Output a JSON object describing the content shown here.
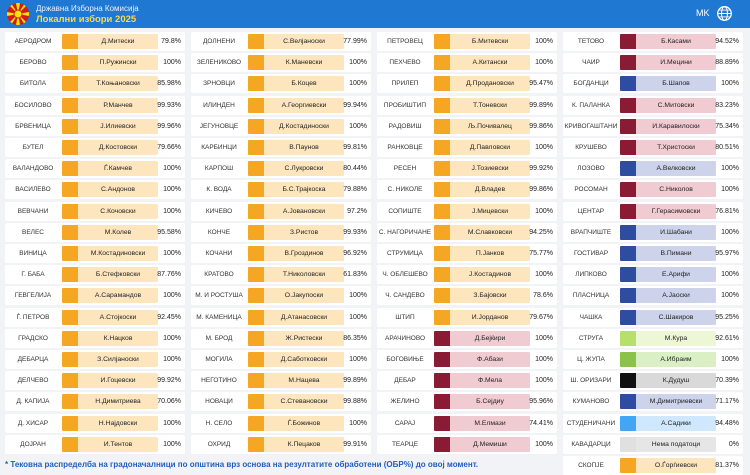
{
  "header": {
    "org": "Државна Изборна Комисија",
    "title": "Локални избори 2025",
    "lang": "MK",
    "logo_icon": "commission-logo-icon",
    "lang_icon": "globe-icon"
  },
  "party_colors": {
    "orange": "#f5a623",
    "maroon": "#8b1a35",
    "blue": "#2f4da0",
    "green": "#8bc34a",
    "lightgreen": "#b6e06a",
    "lightblue": "#42a5f5",
    "black": "#111111",
    "none": "#e0e0e0"
  },
  "columns": [
    [
      {
        "muni": "АЕРОДРОМ",
        "name": "Д.Митески",
        "pct": "79.8%",
        "party": "or"
      },
      {
        "muni": "БЕРОВО",
        "name": "П.Ружински",
        "pct": "100%",
        "party": "or"
      },
      {
        "muni": "БИТОЛА",
        "name": "Т.Коњановски",
        "pct": "85.98%",
        "party": "or"
      },
      {
        "muni": "БОСИЛОВО",
        "name": "Р.Манчев",
        "pct": "99.93%",
        "party": "or"
      },
      {
        "muni": "БРВЕНИЦА",
        "name": "Ј.Илиевски",
        "pct": "99.96%",
        "party": "or"
      },
      {
        "muni": "БУТЕЛ",
        "name": "Д.Костовски",
        "pct": "79.66%",
        "party": "or"
      },
      {
        "muni": "ВАЛАНДОВО",
        "name": "Ѓ.Камчев",
        "pct": "100%",
        "party": "or"
      },
      {
        "muni": "ВАСИЛЕВО",
        "name": "С.Андонов",
        "pct": "100%",
        "party": "or"
      },
      {
        "muni": "ВЕВЧАНИ",
        "name": "С.Кочовски",
        "pct": "100%",
        "party": "or"
      },
      {
        "muni": "ВЕЛЕС",
        "name": "М.Колев",
        "pct": "95.58%",
        "party": "or"
      },
      {
        "muni": "ВИНИЦА",
        "name": "М.Костадиновски",
        "pct": "100%",
        "party": "or"
      },
      {
        "muni": "Г. БАБА",
        "name": "Б.Стефковски",
        "pct": "87.76%",
        "party": "or"
      },
      {
        "muni": "ГЕВГЕЛИЈА",
        "name": "А.Сарамандов",
        "pct": "100%",
        "party": "or"
      },
      {
        "muni": "Ѓ. ПЕТРОВ",
        "name": "А.Стојкоски",
        "pct": "92.45%",
        "party": "or"
      },
      {
        "muni": "ГРАДСКО",
        "name": "К.Нацков",
        "pct": "100%",
        "party": "or"
      },
      {
        "muni": "ДЕБАРЦА",
        "name": "З.Силјаноски",
        "pct": "100%",
        "party": "or"
      },
      {
        "muni": "ДЕЛЧЕВО",
        "name": "И.Гоцевски",
        "pct": "99.92%",
        "party": "or"
      },
      {
        "muni": "Д. КАПИЈА",
        "name": "Н.Димитриева",
        "pct": "70.06%",
        "party": "or"
      },
      {
        "muni": "Д. ХИСАР",
        "name": "Н.Најдовски",
        "pct": "100%",
        "party": "or"
      },
      {
        "muni": "ДОЈРАН",
        "name": "И.Тентов",
        "pct": "100%",
        "party": "or"
      }
    ],
    [
      {
        "muni": "ДОЛНЕНИ",
        "name": "С.Велјаноски",
        "pct": "77.99%",
        "party": "or"
      },
      {
        "muni": "ЗЕЛЕНИКОВО",
        "name": "К.Маневски",
        "pct": "100%",
        "party": "or"
      },
      {
        "muni": "ЗРНОВЦИ",
        "name": "Б.Коцев",
        "pct": "100%",
        "party": "or"
      },
      {
        "muni": "ИЛИНДЕН",
        "name": "А.Георгиевски",
        "pct": "99.94%",
        "party": "or"
      },
      {
        "muni": "ЈЕГУНОВЦЕ",
        "name": "Д.Костадиноски",
        "pct": "100%",
        "party": "or"
      },
      {
        "muni": "КАРБИНЦИ",
        "name": "В.Паунов",
        "pct": "99.81%",
        "party": "or"
      },
      {
        "muni": "КАРПОШ",
        "name": "С.Лукровски",
        "pct": "80.44%",
        "party": "or"
      },
      {
        "muni": "К. ВОДА",
        "name": "Б.С.Трајкоска",
        "pct": "79.88%",
        "party": "or"
      },
      {
        "muni": "КИЧЕВО",
        "name": "А.Јовановски",
        "pct": "97.2%",
        "party": "or"
      },
      {
        "muni": "КОНЧЕ",
        "name": "З.Ристов",
        "pct": "99.93%",
        "party": "or"
      },
      {
        "muni": "КОЧАНИ",
        "name": "В.Гроздинов",
        "pct": "96.92%",
        "party": "or"
      },
      {
        "muni": "КРАТОВО",
        "name": "Т.Николовски",
        "pct": "61.83%",
        "party": "or"
      },
      {
        "muni": "М. И РОСТУША",
        "name": "О.Јакупоски",
        "pct": "100%",
        "party": "or"
      },
      {
        "muni": "М. КАМЕНИЦА",
        "name": "Д.Атанасовски",
        "pct": "100%",
        "party": "or"
      },
      {
        "muni": "М. БРОД",
        "name": "Ж.Ристески",
        "pct": "86.35%",
        "party": "or"
      },
      {
        "muni": "МОГИЛА",
        "name": "Д.Саботковски",
        "pct": "100%",
        "party": "or"
      },
      {
        "muni": "НЕГОТИНО",
        "name": "М.Нацева",
        "pct": "99.89%",
        "party": "or"
      },
      {
        "muni": "НОВАЦИ",
        "name": "С.Стевановски",
        "pct": "99.88%",
        "party": "or"
      },
      {
        "muni": "Н. СЕЛО",
        "name": "Ѓ.Божинов",
        "pct": "100%",
        "party": "or"
      },
      {
        "muni": "ОХРИД",
        "name": "К.Пецаков",
        "pct": "99.91%",
        "party": "or"
      }
    ],
    [
      {
        "muni": "ПЕТРОВЕЦ",
        "name": "Б.Митевски",
        "pct": "100%",
        "party": "or"
      },
      {
        "muni": "ПЕХЧЕВО",
        "name": "А.Китански",
        "pct": "100%",
        "party": "or"
      },
      {
        "muni": "ПРИЛЕП",
        "name": "Д.Продановски",
        "pct": "95.47%",
        "party": "or"
      },
      {
        "muni": "ПРОБИШТИП",
        "name": "Т.Тоневски",
        "pct": "99.89%",
        "party": "or"
      },
      {
        "muni": "РАДОВИШ",
        "name": "Љ.Почивалец",
        "pct": "99.86%",
        "party": "or"
      },
      {
        "muni": "РАНКОВЦЕ",
        "name": "Д.Павловски",
        "pct": "100%",
        "party": "or"
      },
      {
        "muni": "РЕСЕН",
        "name": "Ј.Тозиевски",
        "pct": "99.92%",
        "party": "or"
      },
      {
        "muni": "С. НИКОЛЕ",
        "name": "Д.Владев",
        "pct": "99.86%",
        "party": "or"
      },
      {
        "muni": "СОПИШТЕ",
        "name": "Ј.Мицевски",
        "pct": "100%",
        "party": "or"
      },
      {
        "muni": "С. НАГОРИЧАНЕ",
        "name": "М.Славковски",
        "pct": "94.25%",
        "party": "or"
      },
      {
        "muni": "СТРУМИЦА",
        "name": "П.Јанков",
        "pct": "75.77%",
        "party": "or"
      },
      {
        "muni": "Ч. ОБЛЕШЕВО",
        "name": "Ј.Костадинов",
        "pct": "100%",
        "party": "or"
      },
      {
        "muni": "Ч. САНДЕВО",
        "name": "З.Бајовски",
        "pct": "78.6%",
        "party": "or"
      },
      {
        "muni": "ШТИП",
        "name": "И.Јорданов",
        "pct": "79.67%",
        "party": "or"
      },
      {
        "muni": "АРАЧИНОВО",
        "name": "Д.Бејќири",
        "pct": "100%",
        "party": "rd"
      },
      {
        "muni": "БОГОВИЊЕ",
        "name": "Ф.Абази",
        "pct": "100%",
        "party": "rd"
      },
      {
        "muni": "ДЕБАР",
        "name": "Ф.Мела",
        "pct": "100%",
        "party": "rd"
      },
      {
        "muni": "ЖЕЛИНО",
        "name": "Б.Сејдиу",
        "pct": "95.96%",
        "party": "rd"
      },
      {
        "muni": "САРАЈ",
        "name": "М.Елмази",
        "pct": "74.41%",
        "party": "rd"
      },
      {
        "muni": "ТЕАРЦЕ",
        "name": "Д.Мемиши",
        "pct": "100%",
        "party": "rd"
      }
    ],
    [
      {
        "muni": "ТЕТОВО",
        "name": "Б.Касами",
        "pct": "94.52%",
        "party": "rd"
      },
      {
        "muni": "ЧАИР",
        "name": "И.Мецини",
        "pct": "88.89%",
        "party": "rd"
      },
      {
        "muni": "БОГДАНЦИ",
        "name": "Б.Шапов",
        "pct": "100%",
        "party": "bl"
      },
      {
        "muni": "К. ПАЛАНКА",
        "name": "С.Митовски",
        "pct": "83.23%",
        "party": "rd"
      },
      {
        "muni": "КРИВОГАШТАНИ",
        "name": "И.Каравилоски",
        "pct": "75.34%",
        "party": "rd"
      },
      {
        "muni": "КРУШЕВО",
        "name": "Т.Христоски",
        "pct": "80.51%",
        "party": "rd"
      },
      {
        "muni": "ЛОЗОВО",
        "name": "А.Велковски",
        "pct": "100%",
        "party": "bl"
      },
      {
        "muni": "РОСОМАН",
        "name": "С.Николов",
        "pct": "100%",
        "party": "rd"
      },
      {
        "muni": "ЦЕНТАР",
        "name": "Г.Герасимовски",
        "pct": "76.81%",
        "party": "rd"
      },
      {
        "muni": "ВРАПЧИШТЕ",
        "name": "И.Шабани",
        "pct": "100%",
        "party": "bl"
      },
      {
        "muni": "ГОСТИВАР",
        "name": "В.Пимани",
        "pct": "95.97%",
        "party": "bl"
      },
      {
        "muni": "ЛИПКОВО",
        "name": "Е.Арифи",
        "pct": "100%",
        "party": "bl"
      },
      {
        "muni": "ПЛАСНИЦА",
        "name": "А.Јаоски",
        "pct": "100%",
        "party": "bl"
      },
      {
        "muni": "ЧАШКА",
        "name": "С.Шакиров",
        "pct": "95.25%",
        "party": "bl"
      },
      {
        "muni": "СТРУГА",
        "name": "М.Кура",
        "pct": "92.61%",
        "party": "lg"
      },
      {
        "muni": "Ц. ЖУПА",
        "name": "А.Ибраим",
        "pct": "100%",
        "party": "gn"
      },
      {
        "muni": "Ш. ОРИЗАРИ",
        "name": "К.Дудуш",
        "pct": "70.39%",
        "party": "bk"
      },
      {
        "muni": "КУМАНОВО",
        "name": "М.Димитриевски",
        "pct": "71.17%",
        "party": "bl"
      },
      {
        "muni": "СТУДЕНИЧАНИ",
        "name": "А.Садики",
        "pct": "94.48%",
        "party": "lb"
      },
      {
        "muni": "КАВАДАРЦИ",
        "name": "Нема податоци",
        "pct": "0%",
        "party": "gy"
      },
      {
        "muni": "СКОПЈЕ",
        "name": "О.Ѓорѓиевски",
        "pct": "81.37%",
        "party": "or"
      }
    ]
  ],
  "footnote": "* Тековна распределба на градоначалници по општина врз основа на резултатите обработени (ОБР%) до овој момент."
}
